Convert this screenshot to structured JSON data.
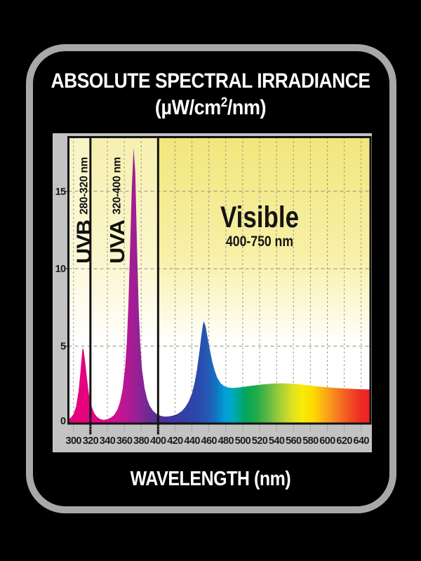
{
  "header": {
    "title": "ABSOLUTE SPECTRAL IRRADIANCE",
    "units_open": "(µW/cm",
    "units_sup": "2",
    "units_close": "/nm)"
  },
  "footer": {
    "axis_title": "WAVELENGTH (nm)"
  },
  "regions": [
    {
      "name": "UVB",
      "range": "280-320 nm",
      "boundary_nm": 320
    },
    {
      "name": "UVA",
      "range": "320-400 nm",
      "boundary_nm": 400
    },
    {
      "name": "Visible",
      "range": "400-750 nm"
    }
  ],
  "colors": {
    "background": "#000000",
    "frame_border": "#A8A8A8",
    "axis_panel": "#C3C3C3",
    "plot_bg_top": "#F1E67C",
    "plot_bg_mid": "#F8F0A8",
    "plot_bg_bottom": "#FFFFFF",
    "grid": "#8F8F7E",
    "tick_dash": "#8A8A8A",
    "tick_text": "#1C1C1C",
    "region_line": "#121212",
    "plot_border": "#121212",
    "title_text": "#FFFFFF"
  },
  "chart_data": {
    "type": "area",
    "title": "ABSOLUTE SPECTRAL IRRADIANCE (µW/cm2/nm)",
    "xlabel": "WAVELENGTH (nm)",
    "ylabel": "",
    "x_unit": "nm",
    "xlim": [
      294,
      651
    ],
    "ylim": [
      0,
      18.5
    ],
    "x_ticks": [
      300,
      320,
      340,
      360,
      380,
      400,
      420,
      440,
      460,
      480,
      500,
      520,
      540,
      560,
      580,
      600,
      620,
      640
    ],
    "y_ticks": [
      0,
      5,
      10,
      15
    ],
    "grid": "dashed",
    "annotations": [
      "UVB 280-320 nm",
      "UVA 320-400 nm",
      "Visible 400-750 nm"
    ],
    "peaks": [
      {
        "nm": 311,
        "value": 4.9,
        "label": "UVB peak"
      },
      {
        "nm": 371,
        "value": 17.8,
        "label": "UVA peak"
      },
      {
        "nm": 454,
        "value": 6.6,
        "label": "blue peak"
      }
    ],
    "points": [
      [
        294,
        0.25
      ],
      [
        297,
        0.4
      ],
      [
        300,
        0.6
      ],
      [
        303,
        1.1
      ],
      [
        306,
        2.1
      ],
      [
        308,
        3.2
      ],
      [
        310,
        4.5
      ],
      [
        311,
        4.9
      ],
      [
        312,
        4.75
      ],
      [
        314,
        3.9
      ],
      [
        316,
        2.9
      ],
      [
        318,
        2.0
      ],
      [
        320,
        1.4
      ],
      [
        322,
        1.0
      ],
      [
        325,
        0.62
      ],
      [
        328,
        0.42
      ],
      [
        332,
        0.28
      ],
      [
        336,
        0.24
      ],
      [
        340,
        0.28
      ],
      [
        344,
        0.38
      ],
      [
        348,
        0.55
      ],
      [
        352,
        0.9
      ],
      [
        355,
        1.4
      ],
      [
        358,
        2.2
      ],
      [
        361,
        3.6
      ],
      [
        363,
        5.2
      ],
      [
        365,
        7.8
      ],
      [
        367,
        11.5
      ],
      [
        369,
        15.3
      ],
      [
        371,
        17.8
      ],
      [
        373,
        16.2
      ],
      [
        375,
        11.5
      ],
      [
        377,
        7.5
      ],
      [
        379,
        5.0
      ],
      [
        381,
        3.5
      ],
      [
        384,
        2.3
      ],
      [
        387,
        1.6
      ],
      [
        390,
        1.15
      ],
      [
        394,
        0.82
      ],
      [
        398,
        0.62
      ],
      [
        403,
        0.5
      ],
      [
        408,
        0.45
      ],
      [
        413,
        0.46
      ],
      [
        418,
        0.52
      ],
      [
        423,
        0.62
      ],
      [
        428,
        0.8
      ],
      [
        432,
        1.05
      ],
      [
        436,
        1.4
      ],
      [
        440,
        1.95
      ],
      [
        443,
        2.6
      ],
      [
        446,
        3.5
      ],
      [
        449,
        4.7
      ],
      [
        451,
        5.6
      ],
      [
        453,
        6.4
      ],
      [
        454,
        6.6
      ],
      [
        456,
        6.3
      ],
      [
        458,
        5.7
      ],
      [
        461,
        4.8
      ],
      [
        464,
        4.0
      ],
      [
        467,
        3.4
      ],
      [
        470,
        2.95
      ],
      [
        474,
        2.6
      ],
      [
        478,
        2.42
      ],
      [
        483,
        2.33
      ],
      [
        488,
        2.3
      ],
      [
        494,
        2.32
      ],
      [
        500,
        2.36
      ],
      [
        510,
        2.44
      ],
      [
        522,
        2.52
      ],
      [
        535,
        2.58
      ],
      [
        548,
        2.6
      ],
      [
        560,
        2.56
      ],
      [
        572,
        2.5
      ],
      [
        585,
        2.42
      ],
      [
        598,
        2.35
      ],
      [
        610,
        2.3
      ],
      [
        622,
        2.26
      ],
      [
        634,
        2.23
      ],
      [
        645,
        2.21
      ],
      [
        651,
        2.2
      ]
    ],
    "spectrum_gradient": [
      {
        "nm": 294,
        "color": "#E5007D"
      },
      {
        "nm": 318,
        "color": "#E4037F"
      },
      {
        "nm": 332,
        "color": "#DE0685"
      },
      {
        "nm": 346,
        "color": "#D30D8D"
      },
      {
        "nm": 358,
        "color": "#BF1592"
      },
      {
        "nm": 368,
        "color": "#A81C94"
      },
      {
        "nm": 378,
        "color": "#8F2394"
      },
      {
        "nm": 388,
        "color": "#702A92"
      },
      {
        "nm": 398,
        "color": "#553093"
      },
      {
        "nm": 408,
        "color": "#463598"
      },
      {
        "nm": 420,
        "color": "#3A389F"
      },
      {
        "nm": 434,
        "color": "#3140A6"
      },
      {
        "nm": 447,
        "color": "#2B49AC"
      },
      {
        "nm": 458,
        "color": "#2758B3"
      },
      {
        "nm": 468,
        "color": "#1272C0"
      },
      {
        "nm": 478,
        "color": "#009CD8"
      },
      {
        "nm": 487,
        "color": "#00A9C6"
      },
      {
        "nm": 495,
        "color": "#00A795"
      },
      {
        "nm": 503,
        "color": "#00A55B"
      },
      {
        "nm": 516,
        "color": "#22AB4A"
      },
      {
        "nm": 530,
        "color": "#5FB946"
      },
      {
        "nm": 544,
        "color": "#A3CD39"
      },
      {
        "nm": 557,
        "color": "#D8DF23"
      },
      {
        "nm": 570,
        "color": "#F8EC09"
      },
      {
        "nm": 583,
        "color": "#FCDB00"
      },
      {
        "nm": 597,
        "color": "#FAAD18"
      },
      {
        "nm": 611,
        "color": "#F67F20"
      },
      {
        "nm": 625,
        "color": "#F15323"
      },
      {
        "nm": 639,
        "color": "#EE2C24"
      },
      {
        "nm": 651,
        "color": "#EC2124"
      }
    ]
  }
}
